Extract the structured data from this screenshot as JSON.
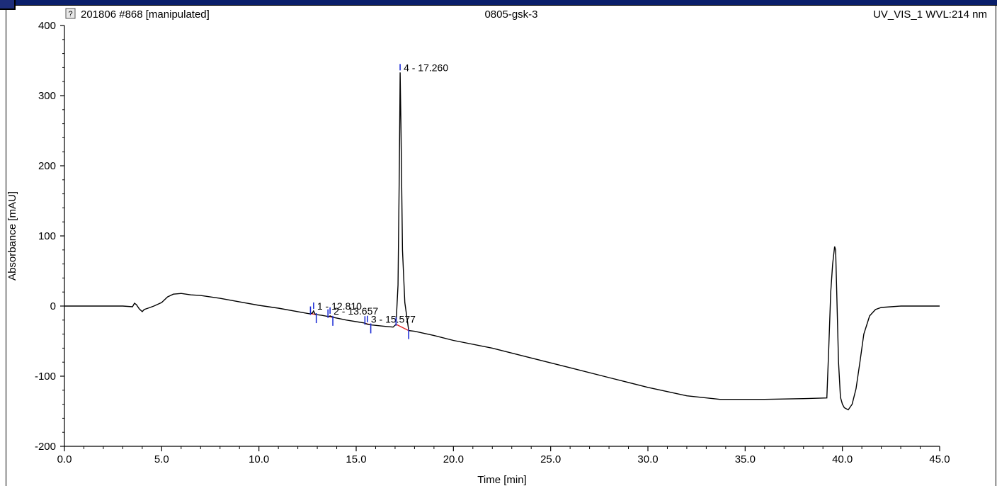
{
  "header": {
    "sample": "201806 #868 [manipulated]",
    "name": "0805-gsk-3",
    "channel": "UV_VIS_1 WVL:214 nm"
  },
  "colors": {
    "trace": "#000000",
    "peak_marker": "#1f2fd6",
    "baseline": "#e02020",
    "frame": "#000000"
  },
  "chart_data": {
    "type": "line",
    "title": "",
    "xlabel": "Time [min]",
    "ylabel": "Absorbance [mAU]",
    "xlim": [
      0,
      45
    ],
    "ylim": [
      -200,
      400
    ],
    "x_ticks": [
      "0.0",
      "5.0",
      "10.0",
      "15.0",
      "20.0",
      "25.0",
      "30.0",
      "35.0",
      "40.0",
      "45.0"
    ],
    "y_ticks": [
      "-200",
      "-100",
      "0",
      "100",
      "200",
      "300",
      "400"
    ],
    "grid": false,
    "series": [
      {
        "x": [
          0,
          1,
          2,
          3,
          3.5,
          3.6,
          3.7,
          3.85,
          4.0,
          4.1,
          4.3,
          4.6,
          5.0,
          5.3,
          5.6,
          6.0,
          6.5,
          7.0,
          7.5,
          8.0,
          9.0,
          10.0,
          11.0,
          12.0,
          12.6,
          12.75,
          12.81,
          12.9,
          13.2,
          13.6,
          13.66,
          13.8,
          14.5,
          15.4,
          15.58,
          15.8,
          16.5,
          16.9,
          17.05,
          17.15,
          17.22,
          17.26,
          17.3,
          17.38,
          17.5,
          17.7,
          18.0,
          19.0,
          20.0,
          22.0,
          24.0,
          26.0,
          28.0,
          30.0,
          32.0,
          33.7,
          34.0,
          36.0,
          38.0,
          39.2,
          39.3,
          39.4,
          39.5,
          39.6,
          39.65,
          39.7,
          39.8,
          39.9,
          40.0,
          40.1,
          40.3,
          40.5,
          40.7,
          40.9,
          41.1,
          41.4,
          41.7,
          42.0,
          42.5,
          43.0,
          43.5,
          44.0,
          45.0
        ],
        "y": [
          0,
          0,
          0,
          0,
          -1,
          4,
          2,
          -4,
          -8,
          -5,
          -3,
          0,
          5,
          13,
          17,
          18,
          16,
          15,
          13,
          11,
          6,
          1,
          -3,
          -8,
          -11,
          -10,
          -7,
          -12,
          -13,
          -15,
          -14,
          -16,
          -20,
          -24,
          -26,
          -27,
          -29,
          -30,
          -26,
          30,
          200,
          333,
          260,
          80,
          5,
          -35,
          -36,
          -42,
          -49,
          -60,
          -74,
          -88,
          -102,
          -116,
          -128,
          -133,
          -133,
          -133,
          -132,
          -131,
          -60,
          20,
          60,
          85,
          80,
          30,
          -80,
          -130,
          -140,
          -145,
          -148,
          -140,
          -118,
          -80,
          -40,
          -14,
          -5,
          -2,
          -1,
          0,
          0,
          0,
          0
        ]
      }
    ],
    "peaks": [
      {
        "label": "1 - 12.810",
        "x": 12.81,
        "y": -7,
        "start": 12.65,
        "end": 12.95
      },
      {
        "label": "2 - 13.657",
        "x": 13.657,
        "y": -14,
        "start": 13.55,
        "end": 13.8
      },
      {
        "label": "3 - 15.577",
        "x": 15.577,
        "y": -26,
        "start": 15.45,
        "end": 15.75
      },
      {
        "label": "4 - 17.260",
        "x": 17.26,
        "y": 333,
        "start": 17.05,
        "end": 17.7
      }
    ]
  }
}
